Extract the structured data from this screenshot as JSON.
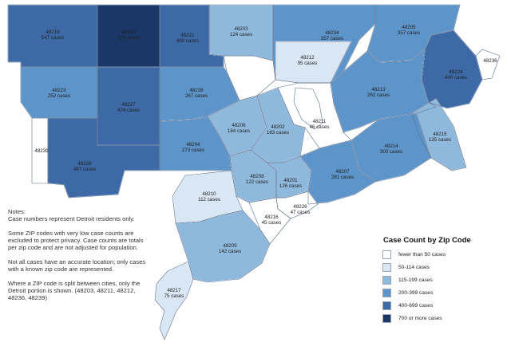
{
  "colors": {
    "bin0": "#ffffff",
    "bin1": "#d9e6f4",
    "bin2": "#8fb8dd",
    "bin3": "#5d94c9",
    "bin4": "#3d6aa6",
    "bin5": "#1a3768",
    "border": "#5a6f8e",
    "inset": "#5e7193"
  },
  "zips": [
    {
      "zip": "48219",
      "cases": "547 cases",
      "bin": 4
    },
    {
      "zip": "48235",
      "cases": "724 cases",
      "bin": 5
    },
    {
      "zip": "48221",
      "cases": "499 cases",
      "bin": 4
    },
    {
      "zip": "48203",
      "cases": "124 cases",
      "bin": 2
    },
    {
      "zip": "48234",
      "cases": "357 cases",
      "bin": 3
    },
    {
      "zip": "48205",
      "cases": "357 cases",
      "bin": 3
    },
    {
      "zip": "48212",
      "cases": "95 cases",
      "bin": 1
    },
    {
      "zip": "48224",
      "cases": "440 cases",
      "bin": 4
    },
    {
      "zip": "48236",
      "cases": "",
      "bin": 0
    },
    {
      "zip": "48223",
      "cases": "252 cases",
      "bin": 3
    },
    {
      "zip": "48227",
      "cases": "474 cases",
      "bin": 4
    },
    {
      "zip": "48238",
      "cases": "267 cases",
      "bin": 3
    },
    {
      "zip": "48213",
      "cases": "262 cases",
      "bin": 3
    },
    {
      "zip": "48206",
      "cases": "184 cases",
      "bin": 2
    },
    {
      "zip": "48202",
      "cases": "183 cases",
      "bin": 2
    },
    {
      "zip": "48211",
      "cases": "46 cases",
      "bin": 0
    },
    {
      "zip": "48215",
      "cases": "125 cases",
      "bin": 2
    },
    {
      "zip": "48239",
      "cases": "",
      "bin": 0
    },
    {
      "zip": "48204",
      "cases": "273 cases",
      "bin": 3
    },
    {
      "zip": "48214",
      "cases": "300 cases",
      "bin": 3
    },
    {
      "zip": "48228",
      "cases": "487 cases",
      "bin": 4
    },
    {
      "zip": "48208",
      "cases": "122 cases",
      "bin": 2
    },
    {
      "zip": "48201",
      "cases": "126 cases",
      "bin": 2
    },
    {
      "zip": "48207",
      "cases": "281 cases",
      "bin": 3
    },
    {
      "zip": "48210",
      "cases": "112 cases",
      "bin": 1
    },
    {
      "zip": "48226",
      "cases": "47 cases",
      "bin": 0
    },
    {
      "zip": "48216",
      "cases": "45 cases",
      "bin": 0
    },
    {
      "zip": "48209",
      "cases": "142 cases",
      "bin": 2
    },
    {
      "zip": "48217",
      "cases": "75 cases",
      "bin": 1
    }
  ],
  "notes": {
    "line1": "Notes:",
    "line2": "Case numbers represent Detroit residents only.",
    "p2": "Some ZIP codes with very low case counts are excluded to protect privacy. Case counts are totals per zip code and are not adjusted for population.",
    "p3": "Not all cases have an accurate location; only cases with a known zip code are represented.",
    "p4": "Where a ZIP code is split between cities, only the Detroit portion is shown. (48203, 48211, 48212, 48236, 48239)"
  },
  "legend": {
    "title": "Case Count by Zip Code",
    "items": [
      {
        "label": "fewer than 50 cases",
        "color": "#ffffff"
      },
      {
        "label": "50-114 cases",
        "color": "#d9e6f4"
      },
      {
        "label": "115-199 cases",
        "color": "#8fb8dd"
      },
      {
        "label": "200-399 cases",
        "color": "#5d94c9"
      },
      {
        "label": "400-699 cases",
        "color": "#3d6aa6"
      },
      {
        "label": "700 or more cases",
        "color": "#1a3768"
      }
    ]
  }
}
